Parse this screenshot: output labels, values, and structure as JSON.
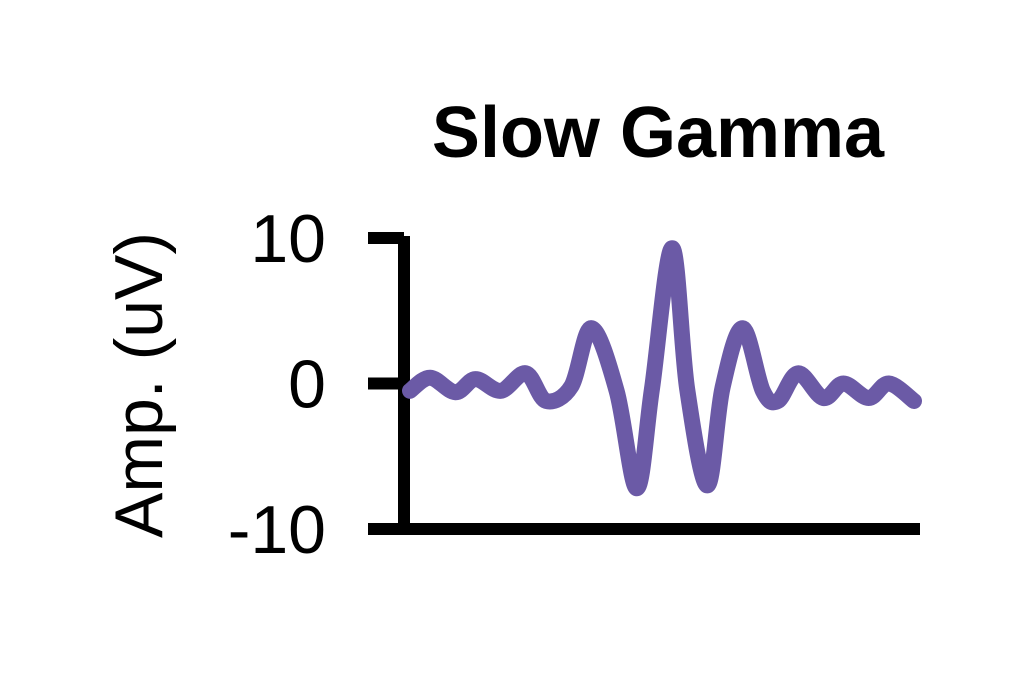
{
  "chart_data": {
    "type": "line",
    "title": "Slow Gamma",
    "xlabel": "",
    "ylabel": "Amp. (uV)",
    "ylim": [
      -10,
      10
    ],
    "yticks": [
      10,
      0,
      -10
    ],
    "ytick_labels": [
      "10",
      "0",
      "-10"
    ],
    "xticks": [],
    "grid": false,
    "x": [
      0,
      0.04,
      0.09,
      0.13,
      0.18,
      0.23,
      0.27,
      0.32,
      0.36,
      0.41,
      0.45,
      0.48,
      0.52,
      0.55,
      0.59,
      0.62,
      0.66,
      0.7,
      0.73,
      0.77,
      0.82,
      0.86,
      0.91,
      0.95,
      1.0
    ],
    "series": [
      {
        "color": "#6b5aa6",
        "values": [
          -0.5,
          0.4,
          -0.6,
          0.3,
          -0.5,
          0.7,
          -1.2,
          -0.2,
          3.8,
          -0.5,
          -7.2,
          -0.4,
          9.3,
          -0.4,
          -7.0,
          -0.3,
          3.8,
          -0.5,
          -1.2,
          0.7,
          -1.0,
          0.0,
          -1.0,
          0.0,
          -1.2
        ]
      }
    ]
  }
}
